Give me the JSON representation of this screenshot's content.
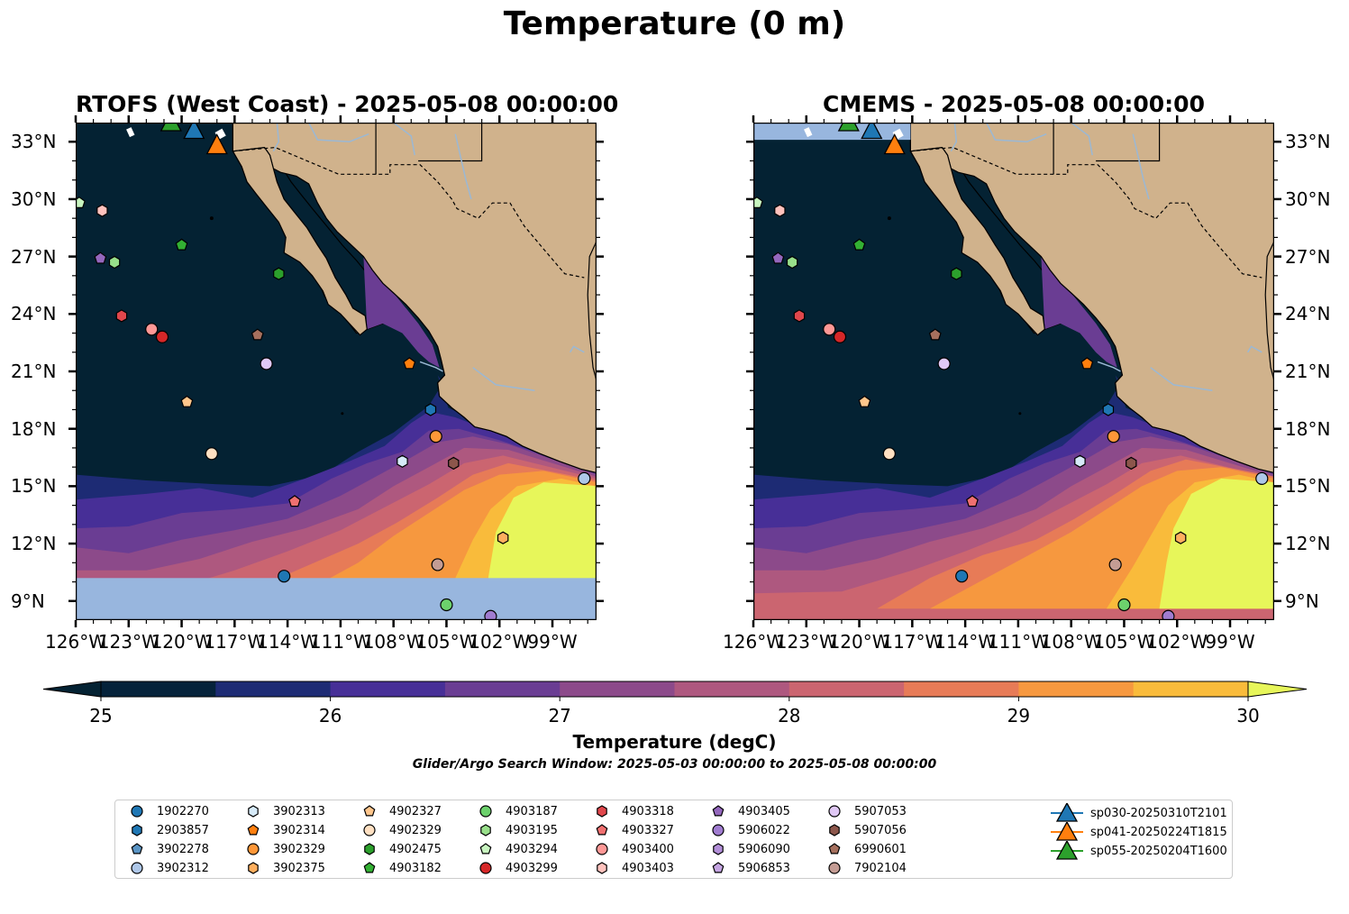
{
  "figure": {
    "title": "Temperature (0 m)",
    "colors": {
      "ocean_cold": "#042233",
      "land": "#d0b28c",
      "mask": "#98b6de",
      "rivers": "#9bb8d4"
    }
  },
  "panels": [
    {
      "title": "RTOFS (West Coast) - 2025-05-08 00:00:00",
      "model": "RTOFS",
      "no_data_below_lat": 10.2
    },
    {
      "title": "CMEMS - 2025-05-08 00:00:00",
      "model": "CMEMS",
      "no_data_north_of_lat": 33.1
    }
  ],
  "axes": {
    "lat_labels": [
      "33°N",
      "30°N",
      "27°N",
      "24°N",
      "21°N",
      "18°N",
      "15°N",
      "12°N",
      "9°N"
    ],
    "lon_labels": [
      "126°W",
      "123°W",
      "120°W",
      "117°W",
      "114°W",
      "111°W",
      "108°W",
      "105°W",
      "102°W",
      "99°W"
    ],
    "lat_values": [
      33,
      30,
      27,
      24,
      21,
      18,
      15,
      12,
      9
    ],
    "lon_values": [
      -126,
      -123,
      -120,
      -117,
      -114,
      -111,
      -108,
      -105,
      -102,
      -99
    ],
    "lon_range": [
      -126,
      -96.5
    ],
    "lat_range": [
      8,
      34
    ]
  },
  "colorbar": {
    "label": "Temperature (degC)",
    "ticks": [
      "25",
      "26",
      "27",
      "28",
      "29",
      "30"
    ],
    "min": 25,
    "max": 30,
    "step": 0.5,
    "colors": [
      "#05223a",
      "#1d2b74",
      "#472f97",
      "#6a3d93",
      "#8c4a8a",
      "#ae587f",
      "#cb6570",
      "#e77b57",
      "#f6983f",
      "#f9bb3b"
    ],
    "under_color": "#042233",
    "over_color": "#e7f65a",
    "extend": "both"
  },
  "search_window": "Glider/Argo Search Window: 2025-05-03 00:00:00 to 2025-05-08 00:00:00",
  "floats": [
    {
      "id": "1902270",
      "marker": "circle",
      "color": "#1f77b4",
      "lon": -114.2,
      "lat": 10.3
    },
    {
      "id": "2903857",
      "marker": "hexagon",
      "color": "#1f77b4",
      "lon": -105.9,
      "lat": 19.0
    },
    {
      "id": "3902278",
      "marker": "pentagon",
      "color": "#5a94c4",
      "lon": null,
      "lat": null
    },
    {
      "id": "3902312",
      "marker": "circle",
      "color": "#aec7e8",
      "lon": -97.2,
      "lat": 15.4
    },
    {
      "id": "3902313",
      "marker": "hexagon",
      "color": "#d6eaf8",
      "lon": -107.5,
      "lat": 16.3
    },
    {
      "id": "3902314",
      "marker": "pentagon",
      "color": "#ff7f0e",
      "lon": -107.1,
      "lat": 21.4
    },
    {
      "id": "3902329",
      "marker": "circle",
      "color": "#ff9738",
      "lon": -105.6,
      "lat": 17.6
    },
    {
      "id": "3902375",
      "marker": "hexagon",
      "color": "#ffaf5e",
      "lon": -101.8,
      "lat": 12.3
    },
    {
      "id": "4902327",
      "marker": "pentagon",
      "color": "#ffc68c",
      "lon": -119.7,
      "lat": 19.4
    },
    {
      "id": "4902329",
      "marker": "circle",
      "color": "#ffe0c2",
      "lon": -118.3,
      "lat": 16.7
    },
    {
      "id": "4902475",
      "marker": "hexagon",
      "color": "#2ca02c",
      "lon": -114.5,
      "lat": 26.1
    },
    {
      "id": "4903182",
      "marker": "pentagon",
      "color": "#33b033",
      "lon": -120.0,
      "lat": 27.6
    },
    {
      "id": "4903187",
      "marker": "circle",
      "color": "#6cd16c",
      "lon": -105.0,
      "lat": 8.8
    },
    {
      "id": "4903195",
      "marker": "hexagon",
      "color": "#98df8a",
      "lon": -123.8,
      "lat": 26.7
    },
    {
      "id": "4903294",
      "marker": "pentagon",
      "color": "#c8f5c0",
      "lon": -125.8,
      "lat": 29.8
    },
    {
      "id": "4903299",
      "marker": "circle",
      "color": "#d62728",
      "lon": -121.1,
      "lat": 22.8
    },
    {
      "id": "4903318",
      "marker": "hexagon",
      "color": "#e0474c",
      "lon": -123.4,
      "lat": 23.9
    },
    {
      "id": "4903327",
      "marker": "pentagon",
      "color": "#f07070",
      "lon": -113.6,
      "lat": 14.2
    },
    {
      "id": "4903400",
      "marker": "circle",
      "color": "#ff9896",
      "lon": -121.7,
      "lat": 23.2
    },
    {
      "id": "4903403",
      "marker": "hexagon",
      "color": "#ffc2bd",
      "lon": -124.5,
      "lat": 29.4
    },
    {
      "id": "4903405",
      "marker": "pentagon",
      "color": "#9467bd",
      "lon": -124.6,
      "lat": 26.9
    },
    {
      "id": "5906022",
      "marker": "circle",
      "color": "#a07cd0",
      "lon": -102.5,
      "lat": 8.2
    },
    {
      "id": "5906090",
      "marker": "hexagon",
      "color": "#b28ed8",
      "lon": null,
      "lat": null
    },
    {
      "id": "5906853",
      "marker": "pentagon",
      "color": "#c5a5e2",
      "lon": null,
      "lat": null
    },
    {
      "id": "5907053",
      "marker": "circle",
      "color": "#e0c8f5",
      "lon": -115.2,
      "lat": 21.4
    },
    {
      "id": "5907056",
      "marker": "hexagon",
      "color": "#8c564b",
      "lon": -104.6,
      "lat": 16.2
    },
    {
      "id": "6990601",
      "marker": "pentagon",
      "color": "#a6705e",
      "lon": -115.7,
      "lat": 22.9
    },
    {
      "id": "7902104",
      "marker": "circle",
      "color": "#c49c94",
      "lon": -105.5,
      "lat": 10.9
    }
  ],
  "gliders": [
    {
      "id": "sp030-20250310T2101",
      "color": "#1f77b4",
      "lon": -119.3,
      "lat": 33.6
    },
    {
      "id": "sp041-20250224T1815",
      "color": "#ff7f0e",
      "lon": -118.0,
      "lat": 32.8
    },
    {
      "id": "sp055-20250204T1600",
      "color": "#2ca02c",
      "lon": -120.6,
      "lat": 34.0
    }
  ]
}
